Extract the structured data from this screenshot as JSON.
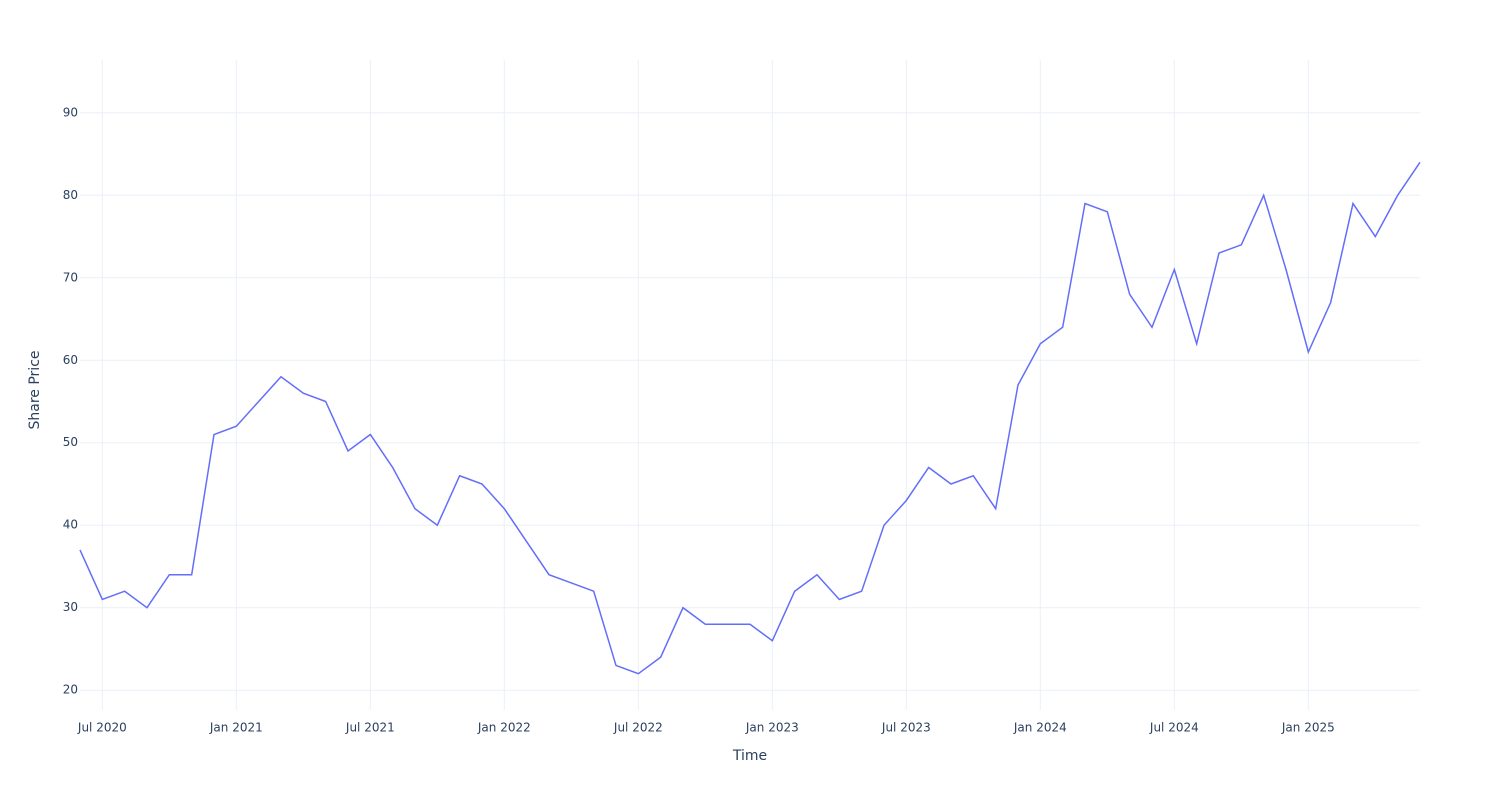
{
  "chart_data": {
    "type": "line",
    "x_label": "Time",
    "y_label": "Share Price",
    "x": [
      "2020-06",
      "2020-07",
      "2020-08",
      "2020-09",
      "2020-10",
      "2020-11",
      "2020-12",
      "2021-01",
      "2021-02",
      "2021-03",
      "2021-04",
      "2021-05",
      "2021-06",
      "2021-07",
      "2021-08",
      "2021-09",
      "2021-10",
      "2021-11",
      "2021-12",
      "2022-01",
      "2022-02",
      "2022-03",
      "2022-04",
      "2022-05",
      "2022-06",
      "2022-07",
      "2022-08",
      "2022-09",
      "2022-10",
      "2022-11",
      "2022-12",
      "2023-01",
      "2023-02",
      "2023-03",
      "2023-04",
      "2023-05",
      "2023-06",
      "2023-07",
      "2023-08",
      "2023-09",
      "2023-10",
      "2023-11",
      "2023-12",
      "2024-01",
      "2024-02",
      "2024-03",
      "2024-04",
      "2024-05",
      "2024-06",
      "2024-07",
      "2024-08",
      "2024-09",
      "2024-10",
      "2024-11",
      "2024-12",
      "2025-01",
      "2025-02",
      "2025-03",
      "2025-04",
      "2025-05",
      "2025-06"
    ],
    "series": [
      {
        "name": "Share Price",
        "color": "#636efa",
        "values": [
          37,
          31,
          32,
          30,
          34,
          34,
          51,
          52,
          55,
          58,
          56,
          55,
          49,
          51,
          47,
          42,
          40,
          46,
          45,
          42,
          38,
          34,
          33,
          32,
          23,
          22,
          24,
          30,
          28,
          28,
          28,
          26,
          32,
          34,
          31,
          32,
          40,
          43,
          47,
          45,
          46,
          42,
          57,
          62,
          64,
          79,
          78,
          68,
          64,
          71,
          62,
          73,
          74,
          80,
          71,
          61,
          67,
          79,
          75,
          80,
          84
        ]
      }
    ],
    "xlim": [
      "2020-06",
      "2025-06"
    ],
    "xticks": [
      {
        "value": "2020-07",
        "label": "Jul 2020"
      },
      {
        "value": "2021-01",
        "label": "Jan 2021"
      },
      {
        "value": "2021-07",
        "label": "Jul 2021"
      },
      {
        "value": "2022-01",
        "label": "Jan 2022"
      },
      {
        "value": "2022-07",
        "label": "Jul 2022"
      },
      {
        "value": "2023-01",
        "label": "Jan 2023"
      },
      {
        "value": "2023-07",
        "label": "Jul 2023"
      },
      {
        "value": "2024-01",
        "label": "Jan 2024"
      },
      {
        "value": "2024-07",
        "label": "Jul 2024"
      },
      {
        "value": "2025-01",
        "label": "Jan 2025"
      }
    ],
    "ylim": [
      17.6,
      96.4
    ],
    "yticks": [
      20,
      30,
      40,
      50,
      60,
      70,
      80,
      90
    ],
    "grid": true
  }
}
